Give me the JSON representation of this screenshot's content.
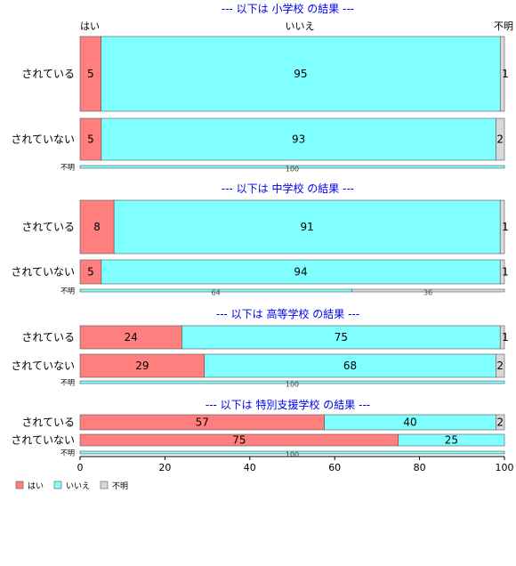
{
  "chart_data": {
    "type": "bar",
    "orientation": "horizontal",
    "stacked": "percent",
    "xlim": [
      0,
      100
    ],
    "x_ticks": [
      "0",
      "20",
      "40",
      "60",
      "80",
      "100"
    ],
    "top_labels": [
      "はい",
      "いいえ",
      "不明"
    ],
    "legend": {
      "placement": "bottom-left",
      "entries": [
        {
          "name": "はい",
          "color": "#ff7f7f"
        },
        {
          "name": "いいえ",
          "color": "#7fffff"
        },
        {
          "name": "不明",
          "color": "#d9d9d9"
        }
      ]
    },
    "panels": [
      {
        "title": "--- 以下は 小学校 の結果 ---",
        "rows": [
          {
            "label": "されている",
            "values": [
              5,
              95,
              1
            ],
            "value_labels": [
              "5",
              "95",
              "1"
            ]
          },
          {
            "label": "されていない",
            "values": [
              5,
              93,
              2
            ],
            "value_labels": [
              "5",
              "93",
              "2"
            ]
          },
          {
            "label": "不明",
            "values": [
              0,
              100,
              0
            ],
            "value_labels": [
              "",
              "100",
              ""
            ]
          }
        ]
      },
      {
        "title": "--- 以下は 中学校 の結果 ---",
        "rows": [
          {
            "label": "されている",
            "values": [
              8,
              91,
              1
            ],
            "value_labels": [
              "8",
              "91",
              "1"
            ]
          },
          {
            "label": "されていない",
            "values": [
              5,
              94,
              1
            ],
            "value_labels": [
              "5",
              "94",
              "1"
            ]
          },
          {
            "label": "不明",
            "values": [
              0,
              64,
              36
            ],
            "value_labels": [
              "",
              "64",
              "36"
            ]
          }
        ]
      },
      {
        "title": "--- 以下は 高等学校 の結果 ---",
        "rows": [
          {
            "label": "されている",
            "values": [
              24,
              75,
              1
            ],
            "value_labels": [
              "24",
              "75",
              "1"
            ]
          },
          {
            "label": "されていない",
            "values": [
              29,
              68,
              2
            ],
            "value_labels": [
              "29",
              "68",
              "2"
            ]
          },
          {
            "label": "不明",
            "values": [
              0,
              100,
              0
            ],
            "value_labels": [
              "",
              "100",
              ""
            ]
          }
        ]
      },
      {
        "title": "--- 以下は 特別支援学校 の結果 ---",
        "rows": [
          {
            "label": "されている",
            "values": [
              57,
              40,
              2
            ],
            "value_labels": [
              "57",
              "40",
              "2"
            ]
          },
          {
            "label": "されていない",
            "values": [
              75,
              25,
              0
            ],
            "value_labels": [
              "75",
              "25",
              ""
            ]
          },
          {
            "label": "不明",
            "values": [
              0,
              100,
              0
            ],
            "value_labels": [
              "",
              "100",
              ""
            ]
          }
        ]
      }
    ]
  }
}
